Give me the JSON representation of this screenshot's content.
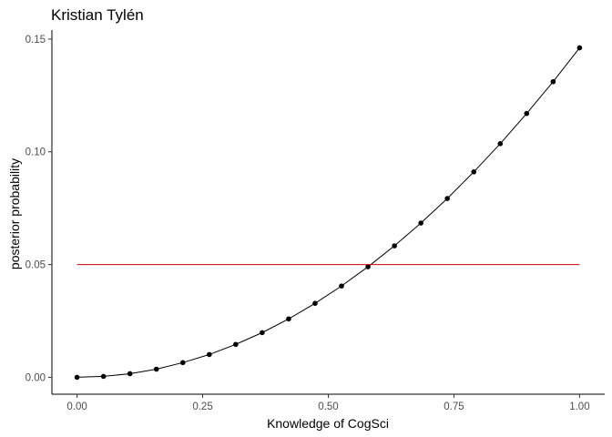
{
  "chart_data": {
    "type": "line",
    "title": "Kristian Tylén",
    "xlabel": "Knowledge of CogSci",
    "ylabel": "posterior probability",
    "xlim": [
      -0.05,
      1.05
    ],
    "ylim": [
      -0.0075,
      0.154
    ],
    "x_ticks": [
      0.0,
      0.25,
      0.5,
      0.75,
      1.0
    ],
    "x_tick_labels": [
      "0.00",
      "0.25",
      "0.50",
      "0.75",
      "1.00"
    ],
    "y_ticks": [
      0.0,
      0.05,
      0.1,
      0.15
    ],
    "y_tick_labels": [
      "0.00",
      "0.05",
      "0.10",
      "0.15"
    ],
    "grid": false,
    "series": [
      {
        "type": "line+points",
        "color": "#000000",
        "x": [
          0.0,
          0.0526,
          0.1053,
          0.1579,
          0.2105,
          0.2632,
          0.3158,
          0.3684,
          0.4211,
          0.4737,
          0.5263,
          0.5789,
          0.6316,
          0.6842,
          0.7368,
          0.7895,
          0.8421,
          0.8947,
          0.9474,
          1.0
        ],
        "y": [
          0.0,
          0.0004,
          0.0016,
          0.0036,
          0.0065,
          0.0101,
          0.0146,
          0.0198,
          0.0259,
          0.0328,
          0.0405,
          0.049,
          0.0583,
          0.0684,
          0.0793,
          0.0911,
          0.1036,
          0.117,
          0.1311,
          0.1461
        ]
      },
      {
        "type": "line",
        "color": "#cc0000",
        "x": [
          0.0,
          1.0
        ],
        "y": [
          0.05,
          0.05
        ]
      }
    ]
  }
}
